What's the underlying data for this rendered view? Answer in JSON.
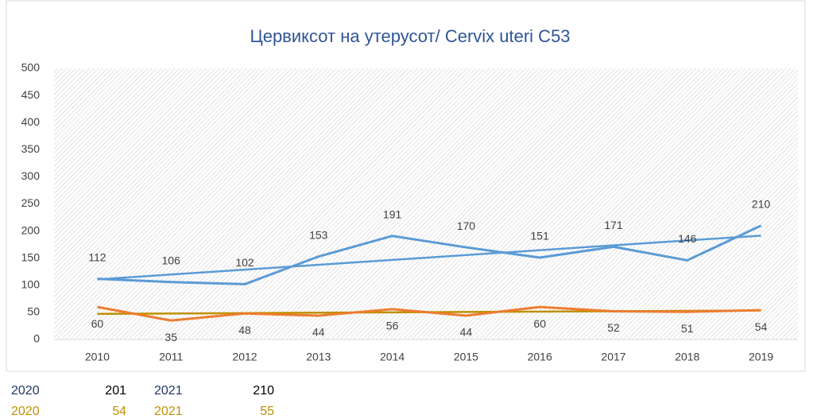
{
  "chart_data": {
    "type": "line",
    "title": "Цервиксот на утерусот/ Cervix uteri C53",
    "categories": [
      "2010",
      "2011",
      "2012",
      "2013",
      "2014",
      "2015",
      "2016",
      "2017",
      "2018",
      "2019"
    ],
    "series": [
      {
        "name": null,
        "color": "#5b9bd5",
        "trendline_color": "#5b9bd5",
        "label_position": "above",
        "values": [
          112,
          106,
          102,
          153,
          191,
          170,
          151,
          171,
          146,
          210
        ]
      },
      {
        "name": null,
        "color": "#ed7d31",
        "trendline_color": "#bf9000",
        "label_position": "below",
        "values": [
          60,
          35,
          48,
          44,
          56,
          44,
          60,
          52,
          51,
          54
        ]
      }
    ],
    "trendline": "linear",
    "ylim": [
      0,
      500
    ],
    "yticks": [
      0,
      50,
      100,
      150,
      200,
      250,
      300,
      350,
      400,
      450,
      500
    ],
    "grid": false,
    "legend": false
  },
  "extra_rows": [
    {
      "color": "#1f3864",
      "cells": [
        "2020",
        "201",
        "2021",
        "210"
      ]
    },
    {
      "color": "#bf9000",
      "cells": [
        "2020",
        "54",
        "2021",
        "55"
      ]
    }
  ]
}
